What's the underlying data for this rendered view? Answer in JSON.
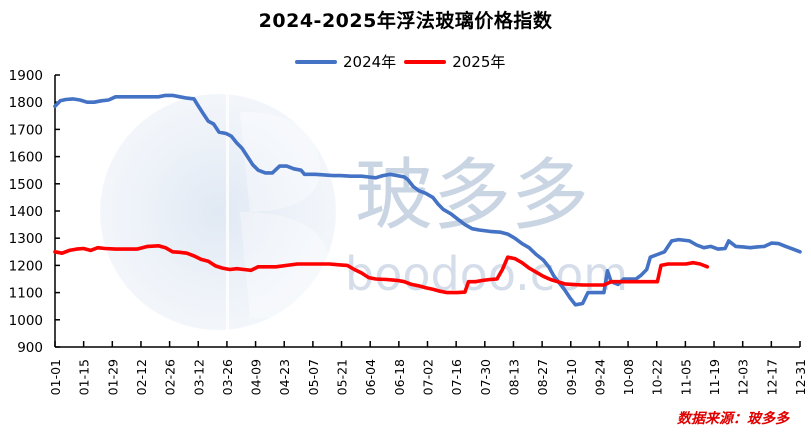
{
  "chart_data": {
    "type": "line",
    "title": "2024-2025年浮法玻璃价格指数",
    "xlabel": "",
    "ylabel": "",
    "ylim": [
      900,
      1900
    ],
    "yticks": [
      900,
      1000,
      1100,
      1200,
      1300,
      1400,
      1500,
      1600,
      1700,
      1800,
      1900
    ],
    "xticks": [
      "01-01",
      "01-15",
      "01-29",
      "02-12",
      "02-26",
      "03-12",
      "03-26",
      "04-09",
      "04-23",
      "05-07",
      "05-21",
      "06-04",
      "06-18",
      "07-02",
      "07-16",
      "07-30",
      "08-13",
      "08-27",
      "09-10",
      "09-24",
      "10-08",
      "10-22",
      "11-05",
      "11-19",
      "12-03",
      "12-17",
      "12-31"
    ],
    "grid": false,
    "legend_position": "top",
    "x_unit": "day-of-year index (0 = 01-01, 365 = 12-31)",
    "series": [
      {
        "name": "2024年",
        "color": "#4472C4",
        "points": [
          [
            0,
            1785
          ],
          [
            3,
            1805
          ],
          [
            6,
            1810
          ],
          [
            10,
            1812
          ],
          [
            14,
            1808
          ],
          [
            18,
            1800
          ],
          [
            22,
            1800
          ],
          [
            26,
            1805
          ],
          [
            30,
            1808
          ],
          [
            34,
            1820
          ],
          [
            40,
            1820
          ],
          [
            46,
            1820
          ],
          [
            52,
            1820
          ],
          [
            58,
            1820
          ],
          [
            62,
            1825
          ],
          [
            66,
            1825
          ],
          [
            70,
            1820
          ],
          [
            74,
            1815
          ],
          [
            78,
            1812
          ],
          [
            80,
            1790
          ],
          [
            83,
            1760
          ],
          [
            86,
            1730
          ],
          [
            89,
            1720
          ],
          [
            92,
            1690
          ],
          [
            96,
            1685
          ],
          [
            99,
            1675
          ],
          [
            102,
            1650
          ],
          [
            105,
            1630
          ],
          [
            108,
            1600
          ],
          [
            111,
            1570
          ],
          [
            114,
            1550
          ],
          [
            118,
            1540
          ],
          [
            122,
            1540
          ],
          [
            126,
            1565
          ],
          [
            130,
            1565
          ],
          [
            134,
            1555
          ],
          [
            138,
            1550
          ],
          [
            140,
            1535
          ],
          [
            146,
            1535
          ],
          [
            152,
            1532
          ],
          [
            156,
            1530
          ],
          [
            160,
            1530
          ],
          [
            166,
            1528
          ],
          [
            172,
            1528
          ],
          [
            176,
            1525
          ],
          [
            180,
            1522
          ],
          [
            184,
            1530
          ],
          [
            188,
            1535
          ],
          [
            192,
            1530
          ],
          [
            196,
            1525
          ],
          [
            198,
            1515
          ],
          [
            201,
            1490
          ],
          [
            204,
            1475
          ],
          [
            208,
            1465
          ],
          [
            212,
            1450
          ],
          [
            215,
            1425
          ],
          [
            218,
            1405
          ],
          [
            222,
            1390
          ],
          [
            226,
            1370
          ],
          [
            230,
            1350
          ],
          [
            234,
            1335
          ],
          [
            238,
            1330
          ],
          [
            244,
            1325
          ],
          [
            250,
            1322
          ],
          [
            254,
            1315
          ],
          [
            258,
            1300
          ],
          [
            262,
            1280
          ],
          [
            266,
            1265
          ],
          [
            270,
            1240
          ],
          [
            274,
            1220
          ],
          [
            277,
            1195
          ],
          [
            280,
            1160
          ],
          [
            283,
            1135
          ],
          [
            286,
            1110
          ],
          [
            289,
            1080
          ],
          [
            292,
            1055
          ],
          [
            296,
            1060
          ],
          [
            299,
            1100
          ],
          [
            304,
            1100
          ],
          [
            308,
            1100
          ],
          [
            310,
            1180
          ],
          [
            312,
            1140
          ],
          [
            316,
            1130
          ],
          [
            319,
            1150
          ],
          [
            322,
            1150
          ],
          [
            326,
            1150
          ],
          [
            329,
            1165
          ],
          [
            332,
            1185
          ],
          [
            334,
            1230
          ],
          [
            338,
            1240
          ],
          [
            342,
            1250
          ],
          [
            346,
            1290
          ],
          [
            350,
            1295
          ],
          [
            356,
            1290
          ],
          [
            360,
            1275
          ],
          [
            364,
            1265
          ],
          [
            368,
            1270
          ],
          [
            372,
            1260
          ],
          [
            376,
            1262
          ],
          [
            378,
            1290
          ],
          [
            382,
            1270
          ],
          [
            386,
            1268
          ],
          [
            390,
            1265
          ],
          [
            394,
            1268
          ],
          [
            398,
            1270
          ],
          [
            402,
            1282
          ],
          [
            406,
            1280
          ],
          [
            410,
            1270
          ],
          [
            414,
            1260
          ],
          [
            418,
            1250
          ]
        ]
      },
      {
        "name": "2025年",
        "color": "#FF0000",
        "points": [
          [
            0,
            1250
          ],
          [
            4,
            1245
          ],
          [
            8,
            1255
          ],
          [
            12,
            1260
          ],
          [
            16,
            1262
          ],
          [
            20,
            1255
          ],
          [
            24,
            1265
          ],
          [
            28,
            1262
          ],
          [
            34,
            1260
          ],
          [
            40,
            1260
          ],
          [
            46,
            1260
          ],
          [
            52,
            1270
          ],
          [
            58,
            1272
          ],
          [
            62,
            1265
          ],
          [
            66,
            1250
          ],
          [
            70,
            1248
          ],
          [
            74,
            1245
          ],
          [
            78,
            1235
          ],
          [
            82,
            1222
          ],
          [
            86,
            1215
          ],
          [
            90,
            1198
          ],
          [
            94,
            1190
          ],
          [
            98,
            1185
          ],
          [
            102,
            1188
          ],
          [
            106,
            1185
          ],
          [
            110,
            1182
          ],
          [
            114,
            1195
          ],
          [
            118,
            1195
          ],
          [
            124,
            1195
          ],
          [
            130,
            1200
          ],
          [
            136,
            1205
          ],
          [
            142,
            1205
          ],
          [
            148,
            1205
          ],
          [
            154,
            1205
          ],
          [
            160,
            1202
          ],
          [
            164,
            1200
          ],
          [
            168,
            1185
          ],
          [
            172,
            1172
          ],
          [
            176,
            1155
          ],
          [
            180,
            1150
          ],
          [
            186,
            1148
          ],
          [
            192,
            1145
          ],
          [
            196,
            1140
          ],
          [
            200,
            1130
          ],
          [
            204,
            1125
          ],
          [
            208,
            1118
          ],
          [
            212,
            1112
          ],
          [
            216,
            1105
          ],
          [
            220,
            1100
          ],
          [
            226,
            1100
          ],
          [
            230,
            1102
          ],
          [
            232,
            1140
          ],
          [
            236,
            1140
          ],
          [
            240,
            1145
          ],
          [
            244,
            1148
          ],
          [
            248,
            1150
          ],
          [
            251,
            1185
          ],
          [
            254,
            1230
          ],
          [
            258,
            1225
          ],
          [
            262,
            1210
          ],
          [
            266,
            1190
          ],
          [
            270,
            1175
          ],
          [
            274,
            1160
          ],
          [
            278,
            1148
          ],
          [
            282,
            1140
          ],
          [
            286,
            1132
          ],
          [
            290,
            1130
          ],
          [
            296,
            1128
          ],
          [
            302,
            1128
          ],
          [
            308,
            1128
          ],
          [
            312,
            1140
          ],
          [
            316,
            1140
          ],
          [
            322,
            1140
          ],
          [
            328,
            1140
          ],
          [
            334,
            1140
          ],
          [
            338,
            1140
          ],
          [
            340,
            1200
          ],
          [
            344,
            1205
          ],
          [
            350,
            1205
          ],
          [
            354,
            1205
          ],
          [
            358,
            1210
          ],
          [
            362,
            1205
          ],
          [
            366,
            1195
          ]
        ]
      }
    ]
  },
  "title": "2024-2025年浮法玻璃价格指数",
  "legend": {
    "items": [
      {
        "label": "2024年",
        "color": "#4472C4"
      },
      {
        "label": "2025年",
        "color": "#FF0000"
      }
    ]
  },
  "watermark": {
    "text": "玻多多",
    "subtext": "boodoo.com"
  },
  "source": "数据来源：玻多多"
}
